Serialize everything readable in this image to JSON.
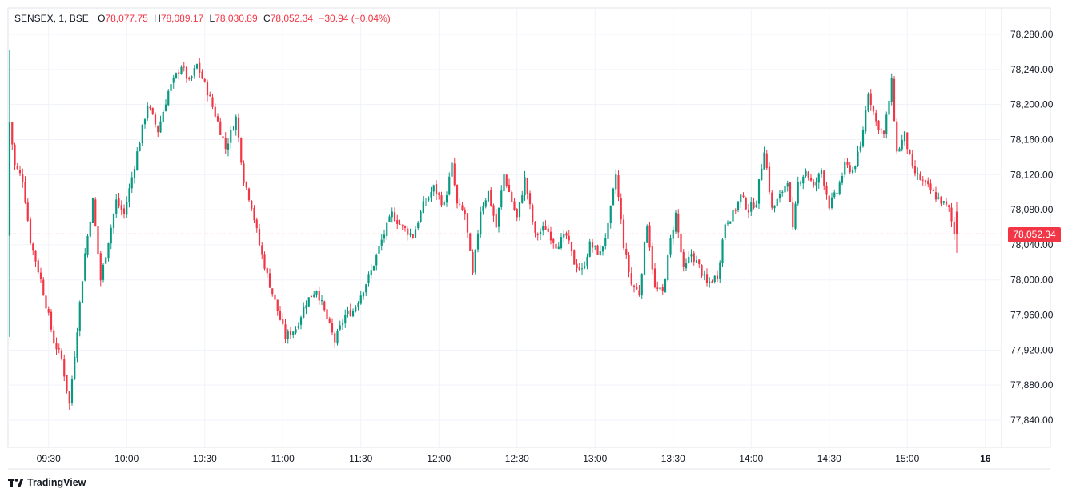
{
  "legend": {
    "symbol": "SENSEX, 1, BSE",
    "open_key": "O",
    "open": "78,077.75",
    "high_key": "H",
    "high": "78,089.17",
    "low_key": "L",
    "low": "78,030.89",
    "close_key": "C",
    "close": "78,052.34",
    "change": "−30.94 (−0.04%)"
  },
  "last_price_label": "78,052.34",
  "brand": {
    "name": "TradingView"
  },
  "colors": {
    "up": "#089981",
    "down": "#f23645",
    "grid": "#f0f3fa",
    "axis_text": "#131722",
    "price_line": "#f23645"
  },
  "chart_data": {
    "type": "candlestick",
    "symbol": "SENSEX",
    "interval": "1",
    "exchange": "BSE",
    "ylim": [
      77800,
      78300
    ],
    "y_ticks": [
      77840,
      77880,
      77920,
      77960,
      78000,
      78040,
      78080,
      78120,
      78160,
      78200,
      78240,
      78280
    ],
    "y_tick_labels": [
      "77,840.00",
      "77,880.00",
      "77,920.00",
      "77,960.00",
      "78,000.00",
      "78,040.00",
      "78,080.00",
      "78,120.00",
      "78,160.00",
      "78,200.00",
      "78,240.00",
      "78,280.00"
    ],
    "x_tick_labels": [
      "09:30",
      "10:00",
      "10:30",
      "11:00",
      "11:30",
      "12:00",
      "12:30",
      "13:00",
      "13:30",
      "14:00",
      "14:30",
      "15:00",
      "16"
    ],
    "x_tick_minutes": [
      15,
      45,
      75,
      105,
      135,
      165,
      195,
      225,
      255,
      285,
      315,
      345,
      375
    ],
    "start_time": "09:15",
    "last_price": 78052.34,
    "path": [
      [
        0,
        78050
      ],
      [
        1,
        78180
      ],
      [
        3,
        78130
      ],
      [
        6,
        78115
      ],
      [
        9,
        78045
      ],
      [
        13,
        78000
      ],
      [
        18,
        77930
      ],
      [
        21,
        77910
      ],
      [
        24,
        77858
      ],
      [
        27,
        77945
      ],
      [
        30,
        78030
      ],
      [
        33,
        78090
      ],
      [
        36,
        78000
      ],
      [
        39,
        78045
      ],
      [
        42,
        78090
      ],
      [
        45,
        78075
      ],
      [
        50,
        78145
      ],
      [
        54,
        78200
      ],
      [
        58,
        78170
      ],
      [
        62,
        78215
      ],
      [
        67,
        78245
      ],
      [
        70,
        78225
      ],
      [
        73,
        78245
      ],
      [
        77,
        78215
      ],
      [
        81,
        78180
      ],
      [
        84,
        78150
      ],
      [
        88,
        78185
      ],
      [
        91,
        78115
      ],
      [
        94,
        78085
      ],
      [
        97,
        78040
      ],
      [
        100,
        78005
      ],
      [
        103,
        77975
      ],
      [
        107,
        77935
      ],
      [
        111,
        77945
      ],
      [
        115,
        77975
      ],
      [
        119,
        77990
      ],
      [
        123,
        77955
      ],
      [
        126,
        77930
      ],
      [
        130,
        77960
      ],
      [
        133,
        77965
      ],
      [
        137,
        77990
      ],
      [
        140,
        78010
      ],
      [
        144,
        78045
      ],
      [
        148,
        78075
      ],
      [
        152,
        78060
      ],
      [
        156,
        78050
      ],
      [
        160,
        78085
      ],
      [
        164,
        78105
      ],
      [
        168,
        78085
      ],
      [
        171,
        78130
      ],
      [
        173,
        78085
      ],
      [
        176,
        78075
      ],
      [
        179,
        78005
      ],
      [
        182,
        78080
      ],
      [
        185,
        78100
      ],
      [
        188,
        78060
      ],
      [
        191,
        78120
      ],
      [
        194,
        78090
      ],
      [
        196,
        78070
      ],
      [
        199,
        78115
      ],
      [
        203,
        78050
      ],
      [
        207,
        78060
      ],
      [
        211,
        78040
      ],
      [
        215,
        78050
      ],
      [
        218,
        78020
      ],
      [
        221,
        78010
      ],
      [
        224,
        78040
      ],
      [
        228,
        78030
      ],
      [
        231,
        78060
      ],
      [
        234,
        78120
      ],
      [
        237,
        78040
      ],
      [
        240,
        77995
      ],
      [
        243,
        77985
      ],
      [
        246,
        78065
      ],
      [
        249,
        77990
      ],
      [
        252,
        77985
      ],
      [
        255,
        78045
      ],
      [
        257,
        78075
      ],
      [
        260,
        78010
      ],
      [
        263,
        78030
      ],
      [
        266,
        78015
      ],
      [
        269,
        77995
      ],
      [
        273,
        78005
      ],
      [
        276,
        78065
      ],
      [
        279,
        78075
      ],
      [
        282,
        78095
      ],
      [
        285,
        78080
      ],
      [
        288,
        78090
      ],
      [
        291,
        78150
      ],
      [
        294,
        78080
      ],
      [
        297,
        78095
      ],
      [
        300,
        78115
      ],
      [
        302,
        78055
      ],
      [
        304,
        78110
      ],
      [
        307,
        78125
      ],
      [
        310,
        78105
      ],
      [
        313,
        78125
      ],
      [
        316,
        78085
      ],
      [
        319,
        78100
      ],
      [
        322,
        78130
      ],
      [
        325,
        78125
      ],
      [
        328,
        78150
      ],
      [
        331,
        78215
      ],
      [
        334,
        78180
      ],
      [
        337,
        78165
      ],
      [
        340,
        78225
      ],
      [
        342,
        78145
      ],
      [
        345,
        78165
      ],
      [
        348,
        78125
      ],
      [
        351,
        78115
      ],
      [
        354,
        78105
      ],
      [
        357,
        78095
      ],
      [
        359,
        78090
      ],
      [
        362,
        78080
      ],
      [
        364,
        78052.34
      ]
    ]
  }
}
